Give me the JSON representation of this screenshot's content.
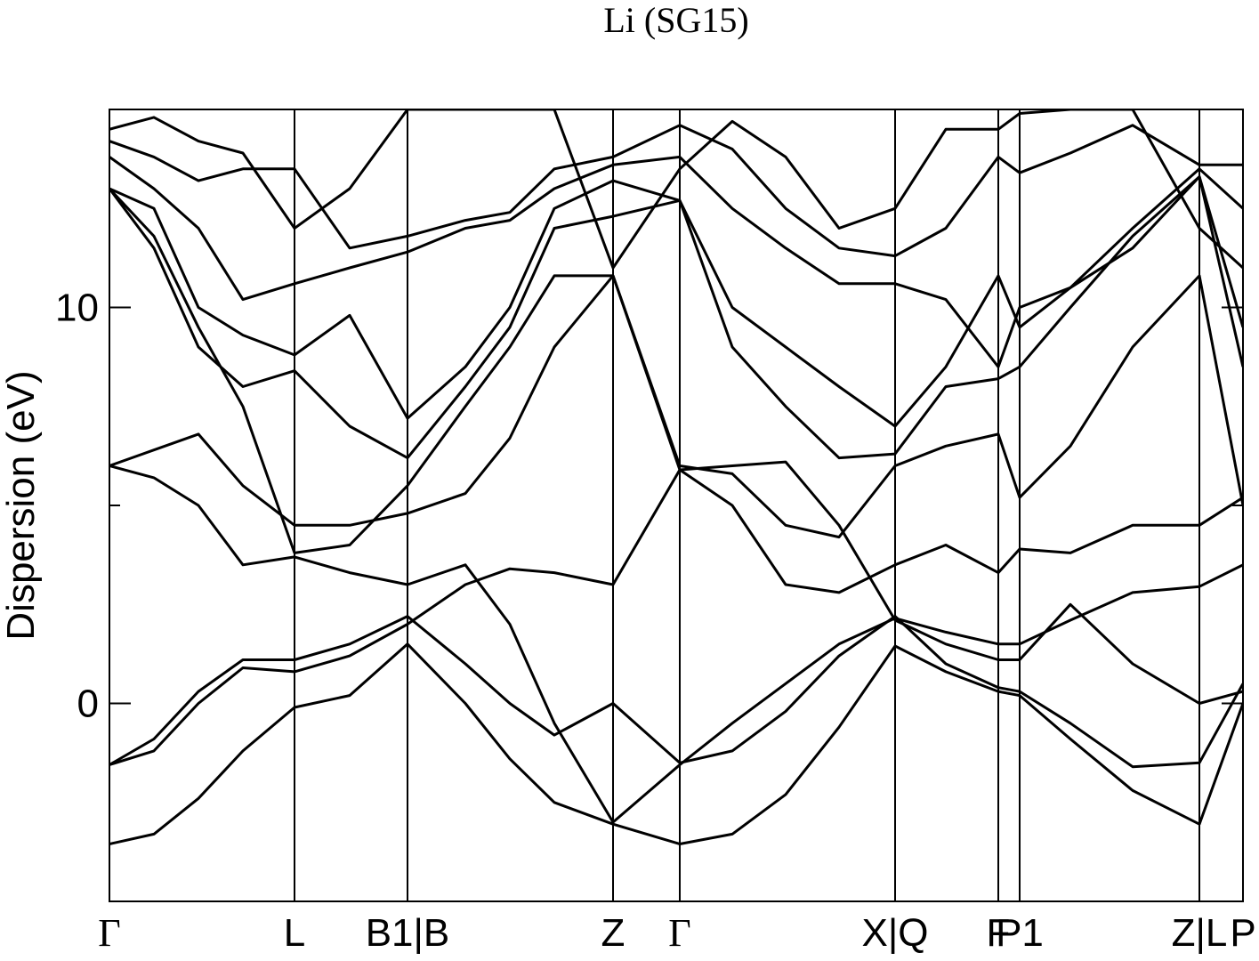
{
  "chart_data": {
    "type": "line",
    "title": "Li (SG15)",
    "y_label": "Dispersion (eV)",
    "xlim": [
      0,
      12.74
    ],
    "ylim": [
      -5,
      15
    ],
    "yticks": [
      0,
      10
    ],
    "yminor_ticks": [
      5
    ],
    "xticks": [
      {
        "value": 0,
        "label": "Γ"
      },
      {
        "value": 2.08,
        "label": "L"
      },
      {
        "value": 3.35,
        "label": "B1|B"
      },
      {
        "value": 5.66,
        "label": "Z"
      },
      {
        "value": 6.41,
        "label": "Γ"
      },
      {
        "value": 8.83,
        "label": "X|Q"
      },
      {
        "value": 9.99,
        "label": "F"
      },
      {
        "value": 10.23,
        "label": "P1"
      },
      {
        "value": 12.25,
        "label": "Z|L"
      },
      {
        "value": 12.74,
        "label": "P"
      }
    ],
    "color": "#000000",
    "x": [
      0,
      0.5,
      1.0,
      1.5,
      2.08,
      2.7,
      3.35,
      4.0,
      4.5,
      5.0,
      5.66,
      6.41,
      7.0,
      7.6,
      8.2,
      8.83,
      9.4,
      9.99,
      10.23,
      10.8,
      11.5,
      12.25,
      12.74
    ],
    "series": [
      {
        "values": [
          -3.55,
          -3.3,
          -2.4,
          -1.2,
          -0.1,
          0.2,
          1.5,
          0.0,
          -1.4,
          -2.5,
          -3.05,
          -3.55,
          -3.3,
          -2.3,
          -0.6,
          1.45,
          0.8,
          0.3,
          0.2,
          -0.9,
          -2.2,
          -3.05,
          0.0
        ]
      },
      {
        "values": [
          -1.55,
          -1.2,
          0.0,
          0.9,
          0.8,
          1.2,
          2.0,
          3.0,
          3.4,
          3.3,
          3.0,
          5.9,
          6.0,
          6.1,
          4.5,
          2.1,
          1.5,
          1.1,
          1.1,
          2.5,
          1.0,
          0.0,
          0.3
        ]
      },
      {
        "values": [
          -1.55,
          -0.9,
          0.3,
          1.1,
          1.1,
          1.5,
          2.2,
          1.0,
          0.0,
          -0.8,
          0.0,
          -1.5,
          -1.2,
          -0.2,
          1.2,
          2.2,
          1.0,
          0.4,
          0.3,
          -0.5,
          -1.6,
          -1.5,
          0.5
        ]
      },
      {
        "values": [
          6.0,
          5.7,
          5.0,
          3.5,
          3.7,
          3.3,
          3.0,
          3.5,
          2.0,
          -0.5,
          -3.0,
          -1.55,
          -0.5,
          0.5,
          1.5,
          2.15,
          1.8,
          1.5,
          1.5,
          2.1,
          2.8,
          2.95,
          3.5
        ]
      },
      {
        "values": [
          6.0,
          6.4,
          6.8,
          5.5,
          4.5,
          4.5,
          4.8,
          5.3,
          6.7,
          9.0,
          10.8,
          5.9,
          5.0,
          3.0,
          2.8,
          3.5,
          4.0,
          3.3,
          3.9,
          3.8,
          4.5,
          4.5,
          5.2
        ]
      },
      {
        "values": [
          13.0,
          11.8,
          9.5,
          7.5,
          3.8,
          4.0,
          5.5,
          7.5,
          9.0,
          10.8,
          10.8,
          6.0,
          5.8,
          4.5,
          4.2,
          6.0,
          6.5,
          6.8,
          5.2,
          6.5,
          9.0,
          10.8,
          5.0
        ]
      },
      {
        "values": [
          13.0,
          11.5,
          9.0,
          8.0,
          8.4,
          7.0,
          6.2,
          8.0,
          9.5,
          12.0,
          12.3,
          12.7,
          9.0,
          7.5,
          6.2,
          6.3,
          8.0,
          8.2,
          8.5,
          10.0,
          11.8,
          13.3,
          8.5
        ]
      },
      {
        "values": [
          13.0,
          12.5,
          10.0,
          9.3,
          8.8,
          9.8,
          7.2,
          8.5,
          10.0,
          12.5,
          13.2,
          12.7,
          10.0,
          9.0,
          8.0,
          7.0,
          8.5,
          10.8,
          9.5,
          10.5,
          11.5,
          13.3,
          9.5
        ]
      },
      {
        "values": [
          13.8,
          13.0,
          12.0,
          10.2,
          10.6,
          11.0,
          11.4,
          12.0,
          12.2,
          13.0,
          13.6,
          13.8,
          12.5,
          11.5,
          10.6,
          10.6,
          10.2,
          8.5,
          10.0,
          10.5,
          12.0,
          13.5,
          12.5
        ]
      },
      {
        "values": [
          14.2,
          13.8,
          13.2,
          13.5,
          13.5,
          11.5,
          11.8,
          12.2,
          12.4,
          13.5,
          13.8,
          14.6,
          14.0,
          12.5,
          11.5,
          11.3,
          12.0,
          13.8,
          13.4,
          13.9,
          14.6,
          13.6,
          13.6
        ]
      },
      {
        "values": [
          14.5,
          14.8,
          14.2,
          13.9,
          12.0,
          13.0,
          15.0,
          15.0,
          15.0,
          15.0,
          11.0,
          13.5,
          14.7,
          13.8,
          12.0,
          12.5,
          14.5,
          14.5,
          14.9,
          15.0,
          15.0,
          12.0,
          11.0
        ]
      }
    ]
  }
}
